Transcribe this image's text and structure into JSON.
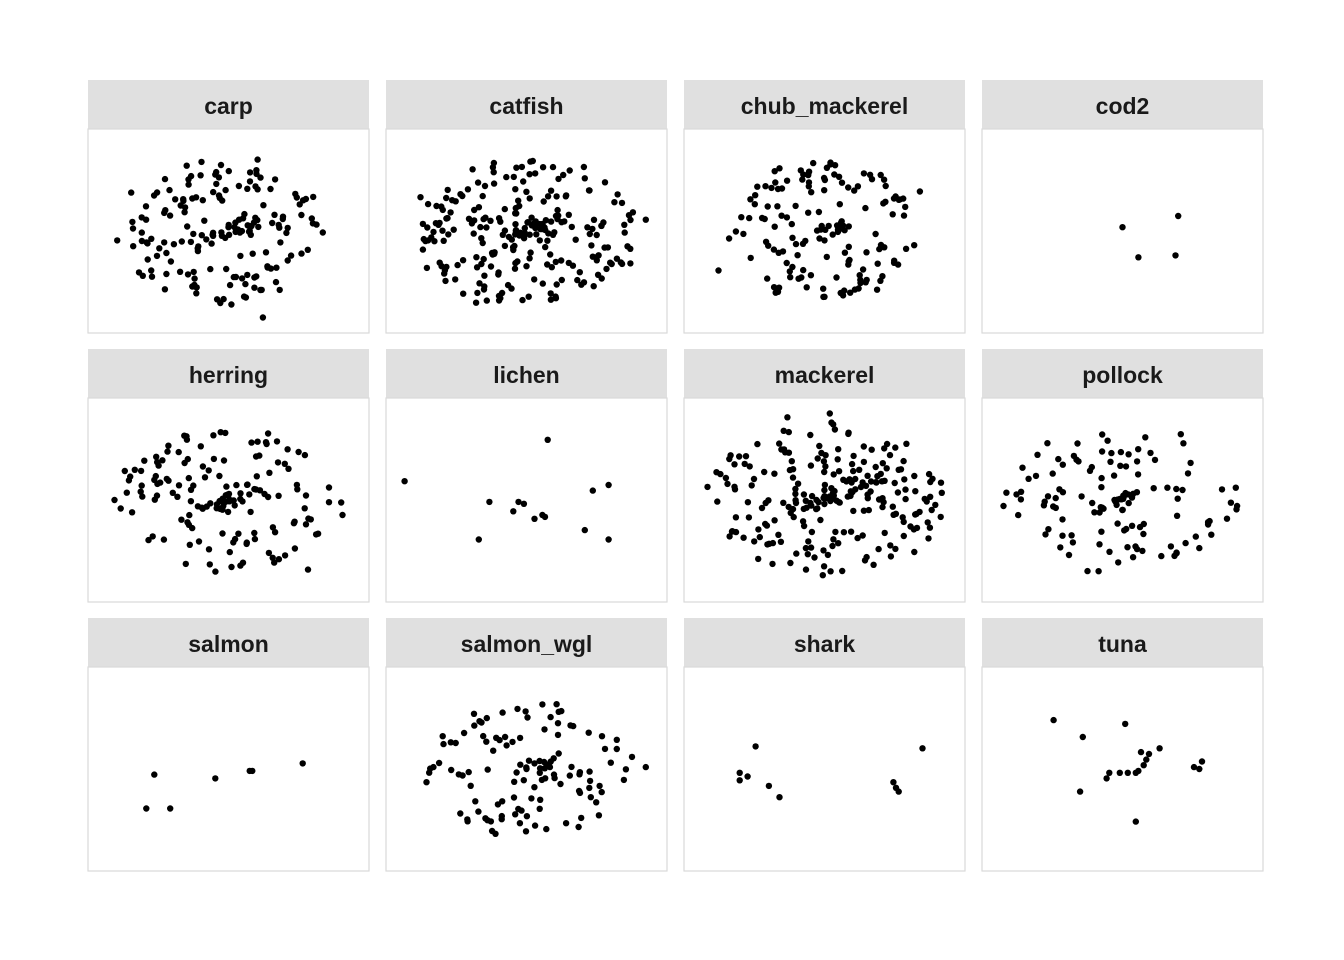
{
  "chart_data": {
    "type": "scatter",
    "layout": "facet-wrap",
    "ncol": 4,
    "axes_shown": false,
    "xlim": [
      0,
      1
    ],
    "ylim": [
      0,
      1
    ],
    "colors": {
      "point": "#000000",
      "strip": "#e0e0e0",
      "panel_border": "#d9d9d9",
      "background": "#ffffff"
    },
    "panels": [
      {
        "name": "carp",
        "gen": {
          "n": 160,
          "seed": 11,
          "cx": 0.5,
          "cy": 0.5,
          "rx": 0.36,
          "ry": 0.37,
          "r": 0.18,
          "vr": 0.045,
          "cn": 26
        },
        "points": [
          [
            0.08,
            0.45
          ],
          [
            0.61,
            0.88
          ],
          [
            0.63,
            0.04
          ],
          [
            0.33,
            0.66
          ],
          [
            0.45,
            0.8
          ],
          [
            0.5,
            0.52
          ],
          [
            0.44,
            0.48
          ],
          [
            0.54,
            0.56
          ],
          [
            0.58,
            0.5
          ],
          [
            0.56,
            0.59
          ],
          [
            0.66,
            0.3
          ],
          [
            0.26,
            0.19
          ],
          [
            0.38,
            0.2
          ]
        ]
      },
      {
        "name": "catfish",
        "gen": {
          "n": 230,
          "seed": 23,
          "cx": 0.5,
          "cy": 0.5,
          "rx": 0.4,
          "ry": 0.37,
          "r": 0.18,
          "vr": 0.05,
          "cn": 38
        },
        "points": [
          [
            0.1,
            0.68
          ],
          [
            0.95,
            0.56
          ],
          [
            0.35,
            0.13
          ],
          [
            0.6,
            0.84
          ],
          [
            0.49,
            0.47
          ],
          [
            0.56,
            0.51
          ],
          [
            0.52,
            0.53
          ],
          [
            0.46,
            0.5
          ],
          [
            0.6,
            0.48
          ],
          [
            0.55,
            0.45
          ]
        ]
      },
      {
        "name": "chub_mackerel",
        "gen": {
          "n": 145,
          "seed": 37,
          "cx": 0.5,
          "cy": 0.5,
          "rx": 0.34,
          "ry": 0.36,
          "r": 0.17,
          "vr": 0.045,
          "cn": 22
        },
        "points": [
          [
            0.1,
            0.29
          ],
          [
            0.86,
            0.71
          ],
          [
            0.54,
            0.85
          ],
          [
            0.5,
            0.15
          ],
          [
            0.14,
            0.46
          ]
        ]
      },
      {
        "name": "cod2",
        "gen": null,
        "points": [
          [
            0.5,
            0.52
          ],
          [
            0.56,
            0.36
          ],
          [
            0.71,
            0.58
          ],
          [
            0.7,
            0.37
          ]
        ]
      },
      {
        "name": "herring",
        "gen": {
          "n": 150,
          "seed": 51,
          "cx": 0.5,
          "cy": 0.5,
          "rx": 0.4,
          "ry": 0.36,
          "r": 0.18,
          "vr": 0.045,
          "cn": 30
        },
        "points": [
          [
            0.07,
            0.5
          ],
          [
            0.93,
            0.42
          ],
          [
            0.61,
            0.81
          ],
          [
            0.8,
            0.13
          ]
        ]
      },
      {
        "name": "lichen",
        "gen": null,
        "points": [
          [
            0.04,
            0.6
          ],
          [
            0.58,
            0.82
          ],
          [
            0.36,
            0.49
          ],
          [
            0.49,
            0.48
          ],
          [
            0.47,
            0.49
          ],
          [
            0.45,
            0.44
          ],
          [
            0.53,
            0.4
          ],
          [
            0.56,
            0.42
          ],
          [
            0.57,
            0.41
          ],
          [
            0.32,
            0.29
          ],
          [
            0.75,
            0.55
          ],
          [
            0.81,
            0.58
          ],
          [
            0.72,
            0.34
          ],
          [
            0.81,
            0.29
          ]
        ]
      },
      {
        "name": "mackerel",
        "gen": {
          "n": 225,
          "seed": 67,
          "cx": 0.5,
          "cy": 0.5,
          "rx": 0.42,
          "ry": 0.38,
          "r": 0.18,
          "vr": 0.05,
          "cn": 32
        },
        "points": [
          [
            0.36,
            0.94
          ],
          [
            0.52,
            0.96
          ],
          [
            0.43,
            0.13
          ],
          [
            0.47,
            0.5
          ],
          [
            0.5,
            0.52
          ],
          [
            0.45,
            0.47
          ]
        ]
      },
      {
        "name": "pollock",
        "gen": {
          "n": 120,
          "seed": 79,
          "cx": 0.5,
          "cy": 0.5,
          "rx": 0.44,
          "ry": 0.36,
          "r": 0.18,
          "vr": 0.035,
          "cn": 20
        },
        "points": [
          [
            0.1,
            0.53
          ],
          [
            0.72,
            0.85
          ],
          [
            0.93,
            0.45
          ],
          [
            0.47,
            0.5
          ]
        ]
      },
      {
        "name": "salmon",
        "gen": null,
        "points": [
          [
            0.22,
            0.47
          ],
          [
            0.45,
            0.45
          ],
          [
            0.58,
            0.49
          ],
          [
            0.59,
            0.49
          ],
          [
            0.78,
            0.53
          ],
          [
            0.19,
            0.29
          ],
          [
            0.28,
            0.29
          ]
        ]
      },
      {
        "name": "salmon_wgl",
        "gen": {
          "n": 115,
          "seed": 97,
          "cx": 0.5,
          "cy": 0.5,
          "rx": 0.38,
          "ry": 0.34,
          "r": 0.2,
          "vr": 0.045,
          "cn": 14
        },
        "points": [
          [
            0.41,
            0.8
          ],
          [
            0.95,
            0.51
          ],
          [
            0.37,
            0.17
          ],
          [
            0.5,
            0.5
          ],
          [
            0.53,
            0.53
          ],
          [
            0.55,
            0.48
          ]
        ]
      },
      {
        "name": "shark",
        "gen": null,
        "points": [
          [
            0.24,
            0.62
          ],
          [
            0.18,
            0.48
          ],
          [
            0.21,
            0.46
          ],
          [
            0.18,
            0.44
          ],
          [
            0.29,
            0.41
          ],
          [
            0.33,
            0.35
          ],
          [
            0.76,
            0.43
          ],
          [
            0.77,
            0.4
          ],
          [
            0.78,
            0.38
          ],
          [
            0.87,
            0.61
          ]
        ]
      },
      {
        "name": "tuna",
        "gen": null,
        "points": [
          [
            0.24,
            0.76
          ],
          [
            0.35,
            0.67
          ],
          [
            0.51,
            0.74
          ],
          [
            0.64,
            0.61
          ],
          [
            0.57,
            0.59
          ],
          [
            0.59,
            0.55
          ],
          [
            0.58,
            0.52
          ],
          [
            0.56,
            0.49
          ],
          [
            0.55,
            0.48
          ],
          [
            0.52,
            0.48
          ],
          [
            0.49,
            0.48
          ],
          [
            0.45,
            0.48
          ],
          [
            0.44,
            0.45
          ],
          [
            0.34,
            0.38
          ],
          [
            0.77,
            0.51
          ],
          [
            0.79,
            0.5
          ],
          [
            0.8,
            0.54
          ],
          [
            0.55,
            0.22
          ],
          [
            0.6,
            0.58
          ]
        ]
      }
    ]
  }
}
